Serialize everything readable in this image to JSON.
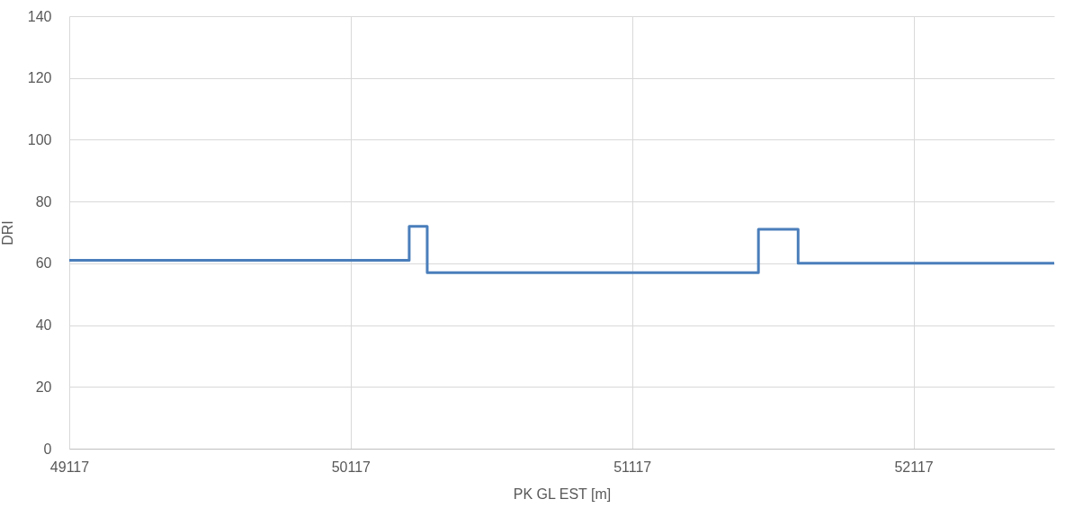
{
  "chart_data": {
    "type": "step",
    "xlabel": "PK GL EST [m]",
    "ylabel": "DRI",
    "x": [
      49117,
      50325,
      50389,
      51566,
      51707,
      52617
    ],
    "series": [
      {
        "color": "#4a7ebb",
        "values": [
          61,
          72,
          57,
          71,
          60,
          60
        ]
      }
    ],
    "xlim": [
      49117,
      52617
    ],
    "xticks": [
      49117,
      50117,
      51117,
      52117
    ],
    "ylim": [
      0,
      140
    ],
    "yticks": [
      0,
      20,
      40,
      60,
      80,
      100,
      120,
      140
    ],
    "grid": true
  }
}
